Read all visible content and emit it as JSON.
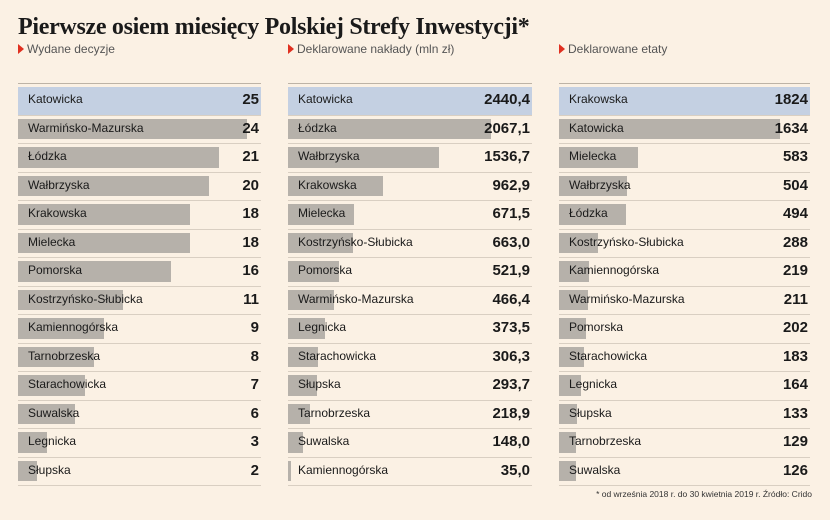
{
  "title": "Pierwsze osiem miesięcy Polskiej Strefy Inwestycji*",
  "footnote": "* od września 2018 r. do 30 kwietnia 2019 r. Źródło: Crido",
  "colors": {
    "accent": "#e03020",
    "highlight": "#c4d0e2",
    "bar": "#b6b1aa",
    "background": "#fbf1e4"
  },
  "chart_data": [
    {
      "type": "bar",
      "title": "Wydane decyzje",
      "orientation": "horizontal",
      "categories": [
        "Katowicka",
        "Warmińsko-Mazurska",
        "Łódzka",
        "Wałbrzyska",
        "Krakowska",
        "Mielecka",
        "Pomorska",
        "Kostrzyńsko-Słubicka",
        "Kamiennogórska",
        "Tarnobrzeska",
        "Starachowicka",
        "Suwalska",
        "Legnicka",
        "Słupska"
      ],
      "values": [
        25,
        24,
        21,
        20,
        18,
        18,
        16,
        11,
        9,
        8,
        7,
        6,
        3,
        2
      ],
      "value_labels": [
        "25",
        "24",
        "21",
        "20",
        "18",
        "18",
        "16",
        "11",
        "9",
        "8",
        "7",
        "6",
        "3",
        "2"
      ]
    },
    {
      "type": "bar",
      "title": "Deklarowane nakłady (mln zł)",
      "orientation": "horizontal",
      "categories": [
        "Katowicka",
        "Łódzka",
        "Wałbrzyska",
        "Krakowska",
        "Mielecka",
        "Kostrzyńsko-Słubicka",
        "Pomorska",
        "Warmińsko-Mazurska",
        "Legnicka",
        "Starachowicka",
        "Słupska",
        "Tarnobrzeska",
        "Suwalska",
        "Kamiennogórska"
      ],
      "values": [
        2440.4,
        2067.1,
        1536.7,
        962.9,
        671.5,
        663.0,
        521.9,
        466.4,
        373.5,
        306.3,
        293.7,
        218.9,
        148.0,
        35.0
      ],
      "value_labels": [
        "2440,4",
        "2067,1",
        "1536,7",
        "962,9",
        "671,5",
        "663,0",
        "521,9",
        "466,4",
        "373,5",
        "306,3",
        "293,7",
        "218,9",
        "148,0",
        "35,0"
      ]
    },
    {
      "type": "bar",
      "title": "Deklarowane etaty",
      "orientation": "horizontal",
      "categories": [
        "Krakowska",
        "Katowicka",
        "Mielecka",
        "Wałbrzyska",
        "Łódzka",
        "Kostrzyńsko-Słubicka",
        "Kamiennogórska",
        "Warmińsko-Mazurska",
        "Pomorska",
        "Starachowicka",
        "Legnicka",
        "Słupska",
        "Tarnobrzeska",
        "Suwalska"
      ],
      "values": [
        1824,
        1634,
        583,
        504,
        494,
        288,
        219,
        211,
        202,
        183,
        164,
        133,
        129,
        126
      ],
      "value_labels": [
        "1824",
        "1634",
        "583",
        "504",
        "494",
        "288",
        "219",
        "211",
        "202",
        "183",
        "164",
        "133",
        "129",
        "126"
      ]
    }
  ]
}
